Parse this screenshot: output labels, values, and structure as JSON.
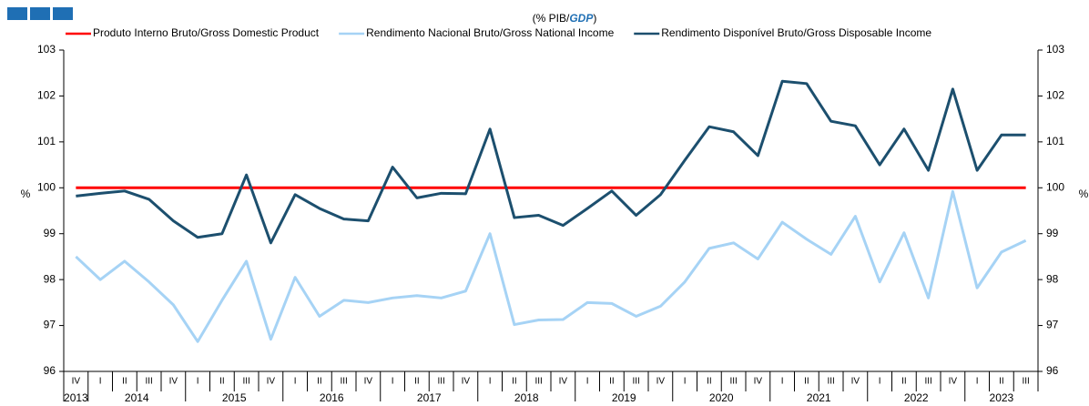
{
  "chart_data": {
    "type": "line",
    "title": "(% PIB/",
    "title_emphasis": "GDP",
    "title_end": ")",
    "ylabel": "%",
    "y2label": "%",
    "categories": [
      "IV",
      "I",
      "II",
      "III",
      "IV",
      "I",
      "II",
      "III",
      "IV",
      "I",
      "II",
      "III",
      "IV",
      "I",
      "II",
      "III",
      "IV",
      "I",
      "II",
      "III",
      "IV",
      "I",
      "II",
      "III",
      "IV",
      "I",
      "II",
      "III",
      "IV",
      "I",
      "II",
      "III",
      "IV",
      "I",
      "II",
      "III",
      "IV",
      "I",
      "II",
      "III"
    ],
    "years": [
      "2013",
      "2014",
      "2015",
      "2016",
      "2017",
      "2018",
      "2019",
      "2020",
      "2021",
      "2022",
      "2023"
    ],
    "series": [
      {
        "name": "Produto Interno Bruto/Gross Domestic Product",
        "color": "#ff0000",
        "values": [
          100,
          100,
          100,
          100,
          100,
          100,
          100,
          100,
          100,
          100,
          100,
          100,
          100,
          100,
          100,
          100,
          100,
          100,
          100,
          100,
          100,
          100,
          100,
          100,
          100,
          100,
          100,
          100,
          100,
          100,
          100,
          100,
          100,
          100,
          100,
          100,
          100,
          100,
          100,
          100
        ]
      },
      {
        "name": "Rendimento Nacional Bruto/Gross National Income",
        "color": "#a6d3f5",
        "values": [
          98.5,
          98.0,
          98.4,
          97.95,
          97.45,
          96.65,
          97.55,
          98.4,
          96.7,
          98.05,
          97.2,
          97.55,
          97.5,
          97.6,
          97.65,
          97.6,
          97.75,
          99.0,
          97.02,
          97.12,
          97.13,
          97.5,
          97.48,
          97.2,
          97.42,
          97.95,
          98.68,
          98.8,
          98.45,
          99.25,
          98.88,
          98.55,
          99.38,
          97.95,
          99.02,
          97.6,
          99.92,
          97.82,
          98.6,
          98.85
        ]
      },
      {
        "name": "Rendimento Disponível Bruto/Gross Disposable Income",
        "color": "#1c4f6e",
        "values": [
          99.82,
          99.88,
          99.93,
          99.75,
          99.28,
          98.92,
          99.0,
          100.28,
          98.8,
          99.85,
          99.55,
          99.32,
          99.28,
          100.45,
          99.78,
          99.88,
          99.87,
          101.28,
          99.35,
          99.4,
          99.18,
          99.55,
          99.93,
          99.4,
          99.85,
          100.6,
          101.33,
          101.22,
          100.7,
          102.32,
          102.27,
          101.45,
          101.35,
          100.5,
          101.28,
          100.38,
          102.15,
          100.38,
          101.15,
          101.15
        ]
      }
    ],
    "ylim": [
      96,
      103
    ],
    "yticks": [
      96,
      97,
      98,
      99,
      100,
      101,
      102,
      103
    ],
    "y2lim": [
      96,
      103
    ],
    "y2ticks": [
      96,
      97,
      98,
      99,
      100,
      101,
      102,
      103
    ]
  }
}
